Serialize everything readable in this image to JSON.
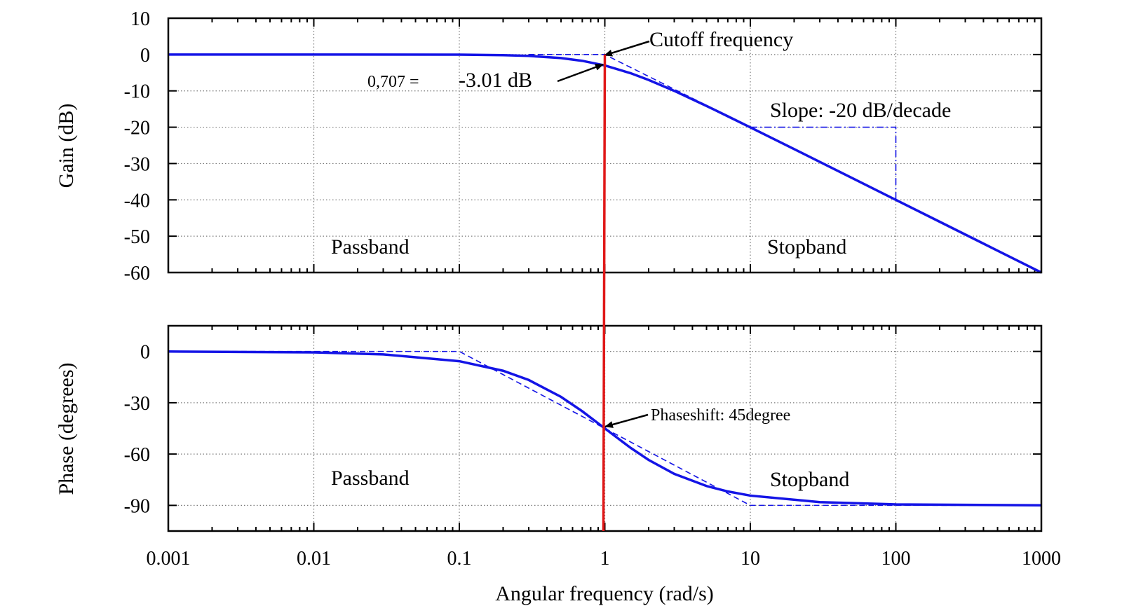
{
  "chart_data": [
    {
      "type": "line",
      "panel": "gain",
      "ylabel": "Gain (dB)",
      "xlabel": "",
      "x_scale": "log",
      "xlim": [
        0.001,
        1000
      ],
      "ylim": [
        -60,
        10
      ],
      "yticks": [
        10,
        0,
        -10,
        -20,
        -30,
        -40,
        -50,
        -60
      ],
      "ytick_labels": [
        "10",
        "0",
        "-10",
        "-20",
        "-30",
        "-40",
        "-50",
        "-60"
      ],
      "grid": true,
      "series": [
        {
          "style": "solid",
          "color": "#1414e6",
          "x": [
            0.001,
            0.01,
            0.1,
            0.2,
            0.3,
            0.5,
            0.7,
            1,
            1.5,
            2,
            3,
            5,
            7,
            10,
            20,
            50,
            100,
            200,
            500,
            1000
          ],
          "y": [
            0,
            0,
            -0.04,
            -0.17,
            -0.37,
            -0.97,
            -1.73,
            -3.01,
            -5.12,
            -6.99,
            -10.0,
            -14.15,
            -17.0,
            -20.04,
            -26.03,
            -33.98,
            -40.0,
            -46.02,
            -53.98,
            -60.0
          ]
        },
        {
          "style": "dashed",
          "color": "#1414e6",
          "x": [
            0.3,
            1,
            1000
          ],
          "y": [
            0,
            0,
            -60
          ]
        }
      ],
      "slope_marker": {
        "x": [
          10,
          100,
          100
        ],
        "y": [
          -20,
          -20,
          -40
        ]
      },
      "annotations": [
        {
          "text": "Cutoff frequency",
          "x": 1,
          "y": 0
        },
        {
          "text_left": "0,707 =",
          "text_right": "-3.01 dB",
          "x": 1,
          "y": -3.01
        },
        {
          "text": "Slope: -20 dB/decade"
        },
        {
          "text": "Passband"
        },
        {
          "text": "Stopband"
        }
      ]
    },
    {
      "type": "line",
      "panel": "phase",
      "ylabel": "Phase (degrees)",
      "xlabel": "Angular frequency (rad/s)",
      "x_scale": "log",
      "xlim": [
        0.001,
        1000
      ],
      "ylim": [
        -105,
        15
      ],
      "yticks": [
        0,
        -30,
        -60,
        -90
      ],
      "ytick_labels": [
        "0",
        "-30",
        "-60",
        "-90"
      ],
      "xtick_labels": [
        "0.001",
        "0.01",
        "0.1",
        "1",
        "10",
        "100",
        "1000"
      ],
      "grid": true,
      "series": [
        {
          "style": "solid",
          "color": "#1414e6",
          "x": [
            0.001,
            0.01,
            0.03,
            0.1,
            0.2,
            0.3,
            0.5,
            0.7,
            1,
            1.5,
            2,
            3,
            5,
            7,
            10,
            30,
            100,
            1000
          ],
          "y": [
            -0.06,
            -0.57,
            -1.72,
            -5.71,
            -11.31,
            -16.7,
            -26.57,
            -34.99,
            -45,
            -56.31,
            -63.43,
            -71.57,
            -78.69,
            -81.87,
            -84.29,
            -88.09,
            -89.43,
            -89.94
          ]
        },
        {
          "style": "dashed",
          "color": "#1414e6",
          "x": [
            0.001,
            0.1,
            10,
            1000
          ],
          "y": [
            0,
            0,
            -90,
            -90
          ]
        }
      ],
      "annotations": [
        {
          "text": "Phaseshift: 45degree",
          "x": 1,
          "y": -45
        },
        {
          "text": "Passband"
        },
        {
          "text": "Stopband"
        }
      ]
    }
  ],
  "cutoff_marker": {
    "x": 1,
    "color": "#e01818"
  },
  "colors": {
    "curve": "#1414e6",
    "cutoff": "#e01818",
    "frame": "#000000",
    "grid": "#7a7a7a"
  }
}
